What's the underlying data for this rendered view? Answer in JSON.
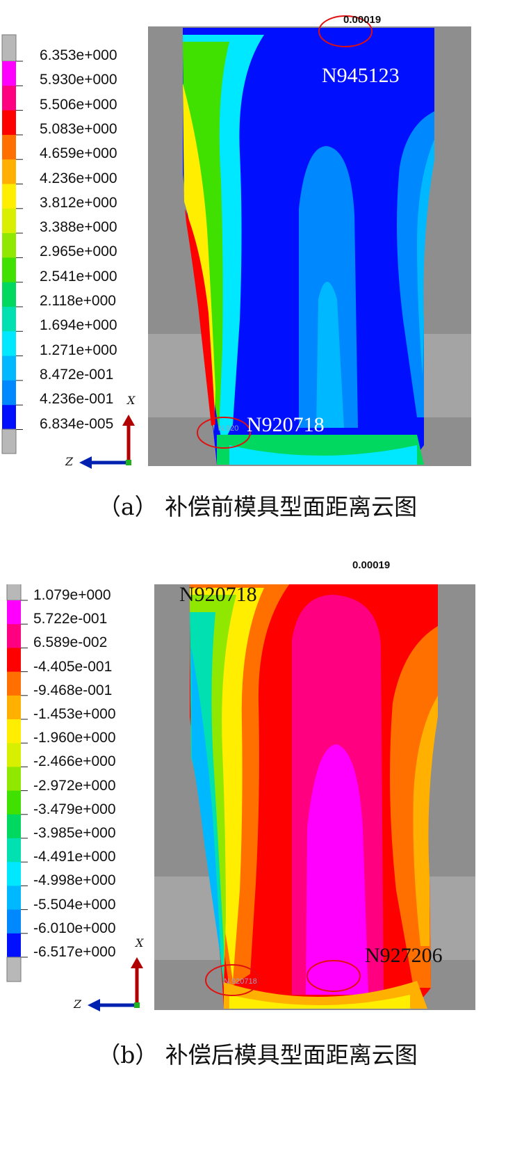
{
  "figures": [
    {
      "id": "a",
      "legend": [
        "6.353e+000",
        "5.930e+000",
        "5.506e+000",
        "5.083e+000",
        "4.659e+000",
        "4.236e+000",
        "3.812e+000",
        "3.388e+000",
        "2.965e+000",
        "2.541e+000",
        "2.118e+000",
        "1.694e+000",
        "1.271e+000",
        "8.472e-001",
        "4.236e-001",
        "6.834e-005"
      ],
      "legend_colors": [
        "#ff00ff",
        "#ff0080",
        "#ff0000",
        "#ff7000",
        "#ffb000",
        "#ffee00",
        "#d8f000",
        "#90e800",
        "#40e000",
        "#00d860",
        "#00e0b0",
        "#00e8ff",
        "#00b8ff",
        "#0088ff",
        "#0010ff"
      ],
      "nodes": [
        "N945123",
        "N920718"
      ],
      "small_tags": [
        "N.920",
        "0.00019"
      ],
      "axis": {
        "vertical": "X",
        "horizontal": "Z"
      },
      "caption": "（a） 补偿前模具型面距离云图"
    },
    {
      "id": "b",
      "legend": [
        "1.079e+000",
        "5.722e-001",
        "6.589e-002",
        "-4.405e-001",
        "-9.468e-001",
        "-1.453e+000",
        "-1.960e+000",
        "-2.466e+000",
        "-2.972e+000",
        "-3.479e+000",
        "-3.985e+000",
        "-4.491e+000",
        "-4.998e+000",
        "-5.504e+000",
        "-6.010e+000",
        "-6.517e+000"
      ],
      "legend_colors": [
        "#ff00ff",
        "#ff0080",
        "#ff0000",
        "#ff7000",
        "#ffb000",
        "#ffee00",
        "#d8f000",
        "#90e800",
        "#40e000",
        "#00d860",
        "#00e0b0",
        "#00e8ff",
        "#00b8ff",
        "#0088ff",
        "#0010ff"
      ],
      "nodes": [
        "N920718",
        "N927206"
      ],
      "small_tags": [
        "N.920718",
        "0.00019"
      ],
      "axis": {
        "vertical": "X",
        "horizontal": "Z"
      },
      "caption": "（b） 补偿后模具型面距离云图"
    }
  ]
}
